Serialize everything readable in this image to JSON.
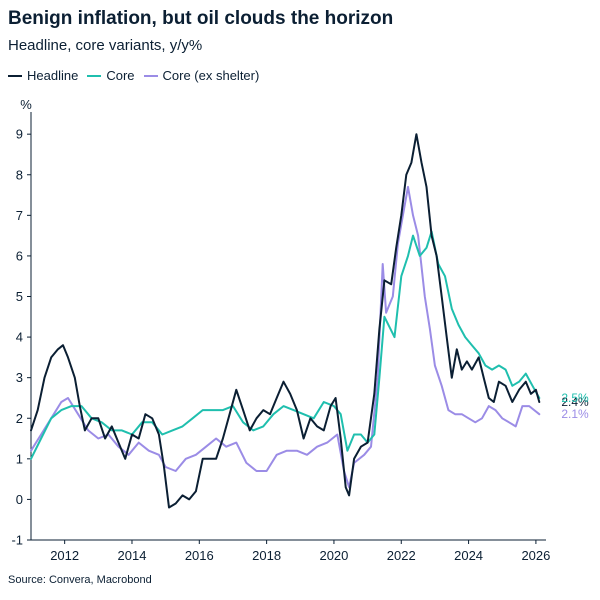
{
  "title": "Benign inflation, but oil clouds the horizon",
  "subtitle": "Headline, core variants, y/y%",
  "source": "Source: Convera, Macrobond",
  "colors": {
    "headline": "#0b1f33",
    "core": "#1fbfae",
    "core_ex_shelter": "#9b8ce6",
    "axis": "#0b1f33"
  },
  "chart_data": {
    "type": "line",
    "ylabel": "%",
    "ylim": [
      -1,
      9.3
    ],
    "xlim": [
      2011.0,
      2026.3
    ],
    "yticks": [
      -1,
      0,
      1,
      2,
      3,
      4,
      5,
      6,
      7,
      8,
      9
    ],
    "xticks": [
      2012,
      2014,
      2016,
      2018,
      2020,
      2022,
      2024,
      2026
    ],
    "legend_placement": "top-left",
    "grid": false,
    "series": [
      {
        "name": "Headline",
        "color": "#0b1f33",
        "end_label": "2.4%",
        "points": [
          [
            2011.0,
            1.7
          ],
          [
            2011.2,
            2.2
          ],
          [
            2011.4,
            3.0
          ],
          [
            2011.6,
            3.5
          ],
          [
            2011.8,
            3.7
          ],
          [
            2011.95,
            3.8
          ],
          [
            2012.1,
            3.5
          ],
          [
            2012.3,
            3.0
          ],
          [
            2012.45,
            2.3
          ],
          [
            2012.6,
            1.7
          ],
          [
            2012.8,
            2.0
          ],
          [
            2013.0,
            2.0
          ],
          [
            2013.2,
            1.5
          ],
          [
            2013.4,
            1.8
          ],
          [
            2013.6,
            1.4
          ],
          [
            2013.8,
            1.0
          ],
          [
            2014.0,
            1.6
          ],
          [
            2014.2,
            1.5
          ],
          [
            2014.4,
            2.1
          ],
          [
            2014.6,
            2.0
          ],
          [
            2014.8,
            1.6
          ],
          [
            2014.95,
            0.8
          ],
          [
            2015.1,
            -0.2
          ],
          [
            2015.3,
            -0.1
          ],
          [
            2015.5,
            0.1
          ],
          [
            2015.7,
            0.0
          ],
          [
            2015.9,
            0.2
          ],
          [
            2016.1,
            1.0
          ],
          [
            2016.3,
            1.0
          ],
          [
            2016.5,
            1.0
          ],
          [
            2016.7,
            1.5
          ],
          [
            2016.9,
            2.1
          ],
          [
            2017.1,
            2.7
          ],
          [
            2017.3,
            2.2
          ],
          [
            2017.5,
            1.7
          ],
          [
            2017.7,
            2.0
          ],
          [
            2017.9,
            2.2
          ],
          [
            2018.1,
            2.1
          ],
          [
            2018.3,
            2.5
          ],
          [
            2018.5,
            2.9
          ],
          [
            2018.7,
            2.6
          ],
          [
            2018.9,
            2.2
          ],
          [
            2019.1,
            1.5
          ],
          [
            2019.3,
            2.0
          ],
          [
            2019.5,
            1.8
          ],
          [
            2019.7,
            1.7
          ],
          [
            2019.9,
            2.3
          ],
          [
            2020.05,
            2.5
          ],
          [
            2020.2,
            1.5
          ],
          [
            2020.35,
            0.3
          ],
          [
            2020.45,
            0.1
          ],
          [
            2020.6,
            1.0
          ],
          [
            2020.8,
            1.3
          ],
          [
            2021.0,
            1.4
          ],
          [
            2021.2,
            2.6
          ],
          [
            2021.35,
            4.2
          ],
          [
            2021.5,
            5.4
          ],
          [
            2021.7,
            5.3
          ],
          [
            2021.85,
            6.2
          ],
          [
            2022.0,
            7.0
          ],
          [
            2022.15,
            8.0
          ],
          [
            2022.3,
            8.3
          ],
          [
            2022.45,
            9.0
          ],
          [
            2022.6,
            8.3
          ],
          [
            2022.75,
            7.7
          ],
          [
            2022.9,
            6.5
          ],
          [
            2023.05,
            6.0
          ],
          [
            2023.2,
            5.0
          ],
          [
            2023.35,
            4.0
          ],
          [
            2023.5,
            3.0
          ],
          [
            2023.65,
            3.7
          ],
          [
            2023.8,
            3.2
          ],
          [
            2023.95,
            3.4
          ],
          [
            2024.1,
            3.2
          ],
          [
            2024.3,
            3.5
          ],
          [
            2024.45,
            3.0
          ],
          [
            2024.6,
            2.5
          ],
          [
            2024.75,
            2.4
          ],
          [
            2024.9,
            2.9
          ],
          [
            2025.1,
            2.8
          ],
          [
            2025.3,
            2.4
          ],
          [
            2025.5,
            2.7
          ],
          [
            2025.7,
            2.9
          ],
          [
            2025.85,
            2.6
          ],
          [
            2026.0,
            2.7
          ],
          [
            2026.1,
            2.4
          ]
        ]
      },
      {
        "name": "Core",
        "color": "#1fbfae",
        "end_label": "2.5%",
        "points": [
          [
            2011.0,
            1.0
          ],
          [
            2011.3,
            1.5
          ],
          [
            2011.6,
            2.0
          ],
          [
            2011.9,
            2.2
          ],
          [
            2012.2,
            2.3
          ],
          [
            2012.5,
            2.3
          ],
          [
            2012.8,
            2.0
          ],
          [
            2013.1,
            1.9
          ],
          [
            2013.4,
            1.7
          ],
          [
            2013.7,
            1.7
          ],
          [
            2014.0,
            1.6
          ],
          [
            2014.3,
            1.9
          ],
          [
            2014.6,
            1.9
          ],
          [
            2014.9,
            1.6
          ],
          [
            2015.2,
            1.7
          ],
          [
            2015.5,
            1.8
          ],
          [
            2015.8,
            2.0
          ],
          [
            2016.1,
            2.2
          ],
          [
            2016.4,
            2.2
          ],
          [
            2016.7,
            2.2
          ],
          [
            2017.0,
            2.3
          ],
          [
            2017.3,
            1.9
          ],
          [
            2017.6,
            1.7
          ],
          [
            2017.9,
            1.8
          ],
          [
            2018.2,
            2.1
          ],
          [
            2018.5,
            2.3
          ],
          [
            2018.8,
            2.2
          ],
          [
            2019.1,
            2.1
          ],
          [
            2019.4,
            2.0
          ],
          [
            2019.7,
            2.4
          ],
          [
            2020.0,
            2.3
          ],
          [
            2020.2,
            2.1
          ],
          [
            2020.4,
            1.2
          ],
          [
            2020.6,
            1.6
          ],
          [
            2020.8,
            1.6
          ],
          [
            2021.0,
            1.4
          ],
          [
            2021.2,
            1.6
          ],
          [
            2021.35,
            3.0
          ],
          [
            2021.5,
            4.5
          ],
          [
            2021.8,
            4.0
          ],
          [
            2022.0,
            5.5
          ],
          [
            2022.2,
            6.0
          ],
          [
            2022.35,
            6.5
          ],
          [
            2022.55,
            6.0
          ],
          [
            2022.75,
            6.2
          ],
          [
            2022.9,
            6.6
          ],
          [
            2023.1,
            5.8
          ],
          [
            2023.3,
            5.5
          ],
          [
            2023.5,
            4.7
          ],
          [
            2023.7,
            4.3
          ],
          [
            2023.9,
            4.0
          ],
          [
            2024.1,
            3.8
          ],
          [
            2024.3,
            3.6
          ],
          [
            2024.5,
            3.3
          ],
          [
            2024.7,
            3.2
          ],
          [
            2024.9,
            3.3
          ],
          [
            2025.1,
            3.2
          ],
          [
            2025.3,
            2.8
          ],
          [
            2025.5,
            2.9
          ],
          [
            2025.7,
            3.1
          ],
          [
            2025.9,
            2.8
          ],
          [
            2026.1,
            2.5
          ]
        ]
      },
      {
        "name": "Core (ex shelter)",
        "color": "#9b8ce6",
        "end_label": "2.1%",
        "points": [
          [
            2011.0,
            1.2
          ],
          [
            2011.3,
            1.6
          ],
          [
            2011.6,
            2.0
          ],
          [
            2011.9,
            2.4
          ],
          [
            2012.1,
            2.5
          ],
          [
            2012.4,
            2.1
          ],
          [
            2012.7,
            1.7
          ],
          [
            2013.0,
            1.5
          ],
          [
            2013.3,
            1.6
          ],
          [
            2013.6,
            1.3
          ],
          [
            2013.9,
            1.1
          ],
          [
            2014.2,
            1.4
          ],
          [
            2014.5,
            1.2
          ],
          [
            2014.8,
            1.1
          ],
          [
            2015.0,
            0.8
          ],
          [
            2015.3,
            0.7
          ],
          [
            2015.6,
            1.0
          ],
          [
            2015.9,
            1.1
          ],
          [
            2016.2,
            1.3
          ],
          [
            2016.5,
            1.5
          ],
          [
            2016.8,
            1.3
          ],
          [
            2017.1,
            1.4
          ],
          [
            2017.4,
            0.9
          ],
          [
            2017.7,
            0.7
          ],
          [
            2018.0,
            0.7
          ],
          [
            2018.3,
            1.1
          ],
          [
            2018.6,
            1.2
          ],
          [
            2018.9,
            1.2
          ],
          [
            2019.2,
            1.1
          ],
          [
            2019.5,
            1.3
          ],
          [
            2019.8,
            1.4
          ],
          [
            2020.1,
            1.6
          ],
          [
            2020.3,
            0.7
          ],
          [
            2020.45,
            0.3
          ],
          [
            2020.6,
            0.9
          ],
          [
            2020.9,
            1.1
          ],
          [
            2021.1,
            1.3
          ],
          [
            2021.3,
            3.0
          ],
          [
            2021.45,
            5.8
          ],
          [
            2021.55,
            4.6
          ],
          [
            2021.75,
            5.0
          ],
          [
            2021.9,
            6.3
          ],
          [
            2022.05,
            7.0
          ],
          [
            2022.2,
            7.7
          ],
          [
            2022.35,
            7.0
          ],
          [
            2022.5,
            6.5
          ],
          [
            2022.7,
            5.0
          ],
          [
            2022.85,
            4.2
          ],
          [
            2023.0,
            3.3
          ],
          [
            2023.2,
            2.8
          ],
          [
            2023.4,
            2.2
          ],
          [
            2023.6,
            2.1
          ],
          [
            2023.8,
            2.1
          ],
          [
            2024.0,
            2.0
          ],
          [
            2024.2,
            1.9
          ],
          [
            2024.4,
            2.0
          ],
          [
            2024.6,
            2.3
          ],
          [
            2024.8,
            2.2
          ],
          [
            2025.0,
            2.0
          ],
          [
            2025.2,
            1.9
          ],
          [
            2025.4,
            1.8
          ],
          [
            2025.6,
            2.3
          ],
          [
            2025.8,
            2.3
          ],
          [
            2025.95,
            2.2
          ],
          [
            2026.1,
            2.1
          ]
        ]
      }
    ]
  }
}
